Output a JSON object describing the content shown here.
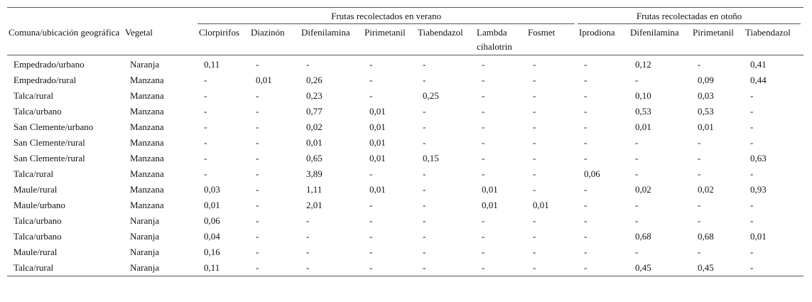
{
  "table": {
    "groups": [
      "Frutas recolectados en verano",
      "Frutas recolectadas en otoño"
    ],
    "columns": [
      "Comuna/ubicación geográfica",
      "Vegetal",
      "Clorpirifos",
      "Diazinón",
      "Difenilamina",
      "Pirimetanil",
      "Tiabendazol",
      "Lambda cihalotrin",
      "Fosmet",
      "Iprodiona",
      "Difenilamina",
      "Pirimetanil",
      "Tiabendazol"
    ],
    "rows": [
      [
        "Empedrado/urbano",
        "Naranja",
        "0,11",
        "-",
        "-",
        "-",
        "-",
        "-",
        "-",
        "-",
        "0,12",
        "-",
        "0,41"
      ],
      [
        "Empedrado/rural",
        "Manzana",
        "-",
        "0,01",
        "0,26",
        "-",
        "-",
        "-",
        "-",
        "-",
        "-",
        "0,09",
        "0,44"
      ],
      [
        "Talca/rural",
        "Manzana",
        "-",
        "-",
        "0,23",
        "-",
        "0,25",
        "-",
        "-",
        "-",
        "0,10",
        "0,03",
        "-"
      ],
      [
        "Talca/urbano",
        "Manzana",
        "-",
        "-",
        "0,77",
        "0,01",
        "-",
        "-",
        "-",
        "-",
        "0,53",
        "0,53",
        "-"
      ],
      [
        "San Clemente/urbano",
        "Manzana",
        "-",
        "-",
        "0,02",
        "0,01",
        "-",
        "-",
        "-",
        "-",
        "0,01",
        "0,01",
        "-"
      ],
      [
        "San Clemente/rural",
        "Manzana",
        "-",
        "-",
        "0,01",
        "0,01",
        "-",
        "-",
        "-",
        "-",
        "-",
        "-",
        "-"
      ],
      [
        "San Clemente/rural",
        "Manzana",
        "-",
        "-",
        "0,65",
        "0,01",
        "0,15",
        "-",
        "-",
        "-",
        "-",
        "-",
        "0,63"
      ],
      [
        "Talca/rural",
        "Manzana",
        "-",
        "-",
        "3,89",
        "-",
        "-",
        "-",
        "-",
        "0,06",
        "-",
        "-",
        "-"
      ],
      [
        "Maule/rural",
        "Manzana",
        "0,03",
        "-",
        "1,11",
        "0,01",
        "-",
        "0,01",
        "-",
        "-",
        "0,02",
        "0,02",
        "0,93"
      ],
      [
        "Maule/urbano",
        "Manzana",
        "0,01",
        "-",
        "2,01",
        "-",
        "-",
        "0,01",
        "0,01",
        "-",
        "-",
        "-",
        "-"
      ],
      [
        "Talca/urbano",
        "Naranja",
        "0,06",
        "-",
        "-",
        "-",
        "-",
        "-",
        "-",
        "-",
        "-",
        "-",
        "-"
      ],
      [
        "Talca/urbano",
        "Naranja",
        "0,04",
        "-",
        "-",
        "-",
        "-",
        "-",
        "-",
        "-",
        "0,68",
        "0,68",
        "0,01"
      ],
      [
        "Maule/rural",
        "Naranja",
        "0,16",
        "-",
        "-",
        "-",
        "-",
        "-",
        "-",
        "-",
        "-",
        "-",
        "-"
      ],
      [
        "Talca/rural",
        "Naranja",
        "0,11",
        "-",
        "-",
        "-",
        "-",
        "-",
        "-",
        "-",
        "0,45",
        "0,45",
        "-"
      ]
    ]
  }
}
